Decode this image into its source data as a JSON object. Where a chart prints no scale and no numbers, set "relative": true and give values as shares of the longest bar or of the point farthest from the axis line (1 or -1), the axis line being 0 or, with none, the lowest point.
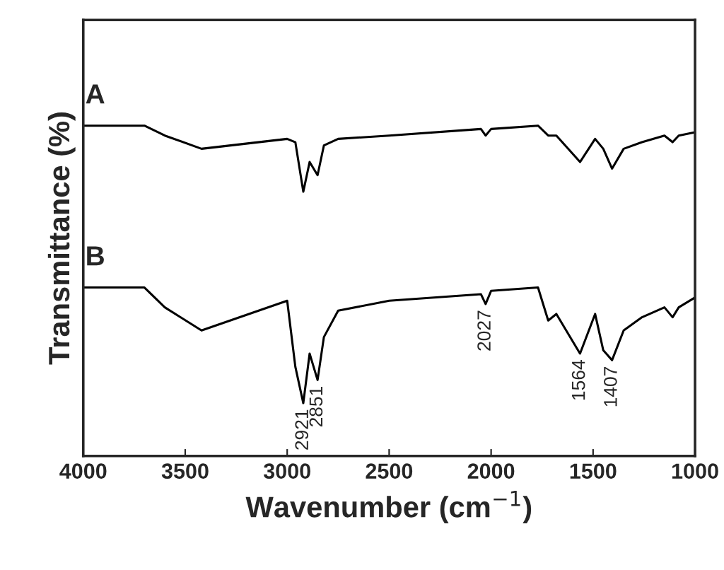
{
  "chart_data": {
    "type": "line",
    "relative": true,
    "xlabel": "Wavenumber (cm$^{−1}$)",
    "ylabel": "Transmittance (%)",
    "x": [
      4000,
      3700,
      3600,
      3420,
      3000,
      2960,
      2921,
      2890,
      2851,
      2820,
      2750,
      2500,
      2050,
      2027,
      2000,
      1770,
      1720,
      1680,
      1564,
      1490,
      1450,
      1407,
      1350,
      1260,
      1150,
      1110,
      1080,
      1000
    ],
    "xlim": [
      4000,
      1000
    ],
    "xticks": [
      4000,
      3500,
      3000,
      2500,
      2000,
      1500,
      1000
    ],
    "series": [
      {
        "name": "A",
        "color": "#000000",
        "values": [
          1.0,
          1.0,
          0.97,
          0.93,
          0.96,
          0.95,
          0.8,
          0.89,
          0.85,
          0.94,
          0.96,
          0.97,
          0.99,
          0.97,
          0.99,
          1.0,
          0.97,
          0.97,
          0.89,
          0.96,
          0.93,
          0.87,
          0.93,
          0.95,
          0.97,
          0.95,
          0.97,
          0.98
        ]
      },
      {
        "name": "B",
        "color": "#000000",
        "values": [
          0.51,
          0.51,
          0.45,
          0.38,
          0.47,
          0.27,
          0.16,
          0.31,
          0.23,
          0.36,
          0.44,
          0.47,
          0.49,
          0.46,
          0.5,
          0.51,
          0.41,
          0.43,
          0.31,
          0.43,
          0.32,
          0.29,
          0.38,
          0.42,
          0.45,
          0.42,
          0.45,
          0.48
        ]
      }
    ],
    "annotations": [
      {
        "text": "2921",
        "x": 2921,
        "y": 0.16
      },
      {
        "text": "2851",
        "x": 2851,
        "y": 0.23
      },
      {
        "text": "2027",
        "x": 2027,
        "y": 0.46
      },
      {
        "text": "1564",
        "x": 1564,
        "y": 0.31
      },
      {
        "text": "1407",
        "x": 1407,
        "y": 0.29
      }
    ],
    "grid": false,
    "legend": false
  }
}
